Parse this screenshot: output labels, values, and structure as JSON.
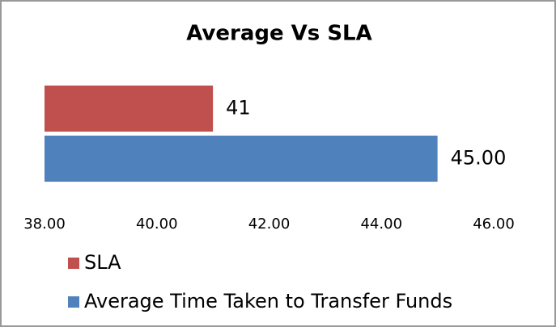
{
  "chart_data": {
    "type": "bar",
    "orientation": "horizontal",
    "title": "Average Vs SLA",
    "categories": [
      null
    ],
    "series": [
      {
        "name": "SLA",
        "color": "#c0504d",
        "values": [
          41
        ]
      },
      {
        "name": "Average Time Taken to Transfer Funds",
        "color": "#4f81bd",
        "values": [
          45
        ],
        "value_labels": [
          "45.00"
        ]
      }
    ],
    "xlim": [
      38,
      46
    ],
    "xticks": [
      {
        "value": 38,
        "label": "38.00"
      },
      {
        "value": 40,
        "label": "40.00"
      },
      {
        "value": 42,
        "label": "42.00"
      },
      {
        "value": 44,
        "label": "44.00"
      },
      {
        "value": 46,
        "label": "46.00"
      }
    ],
    "grid": false,
    "legend": "bottom"
  }
}
